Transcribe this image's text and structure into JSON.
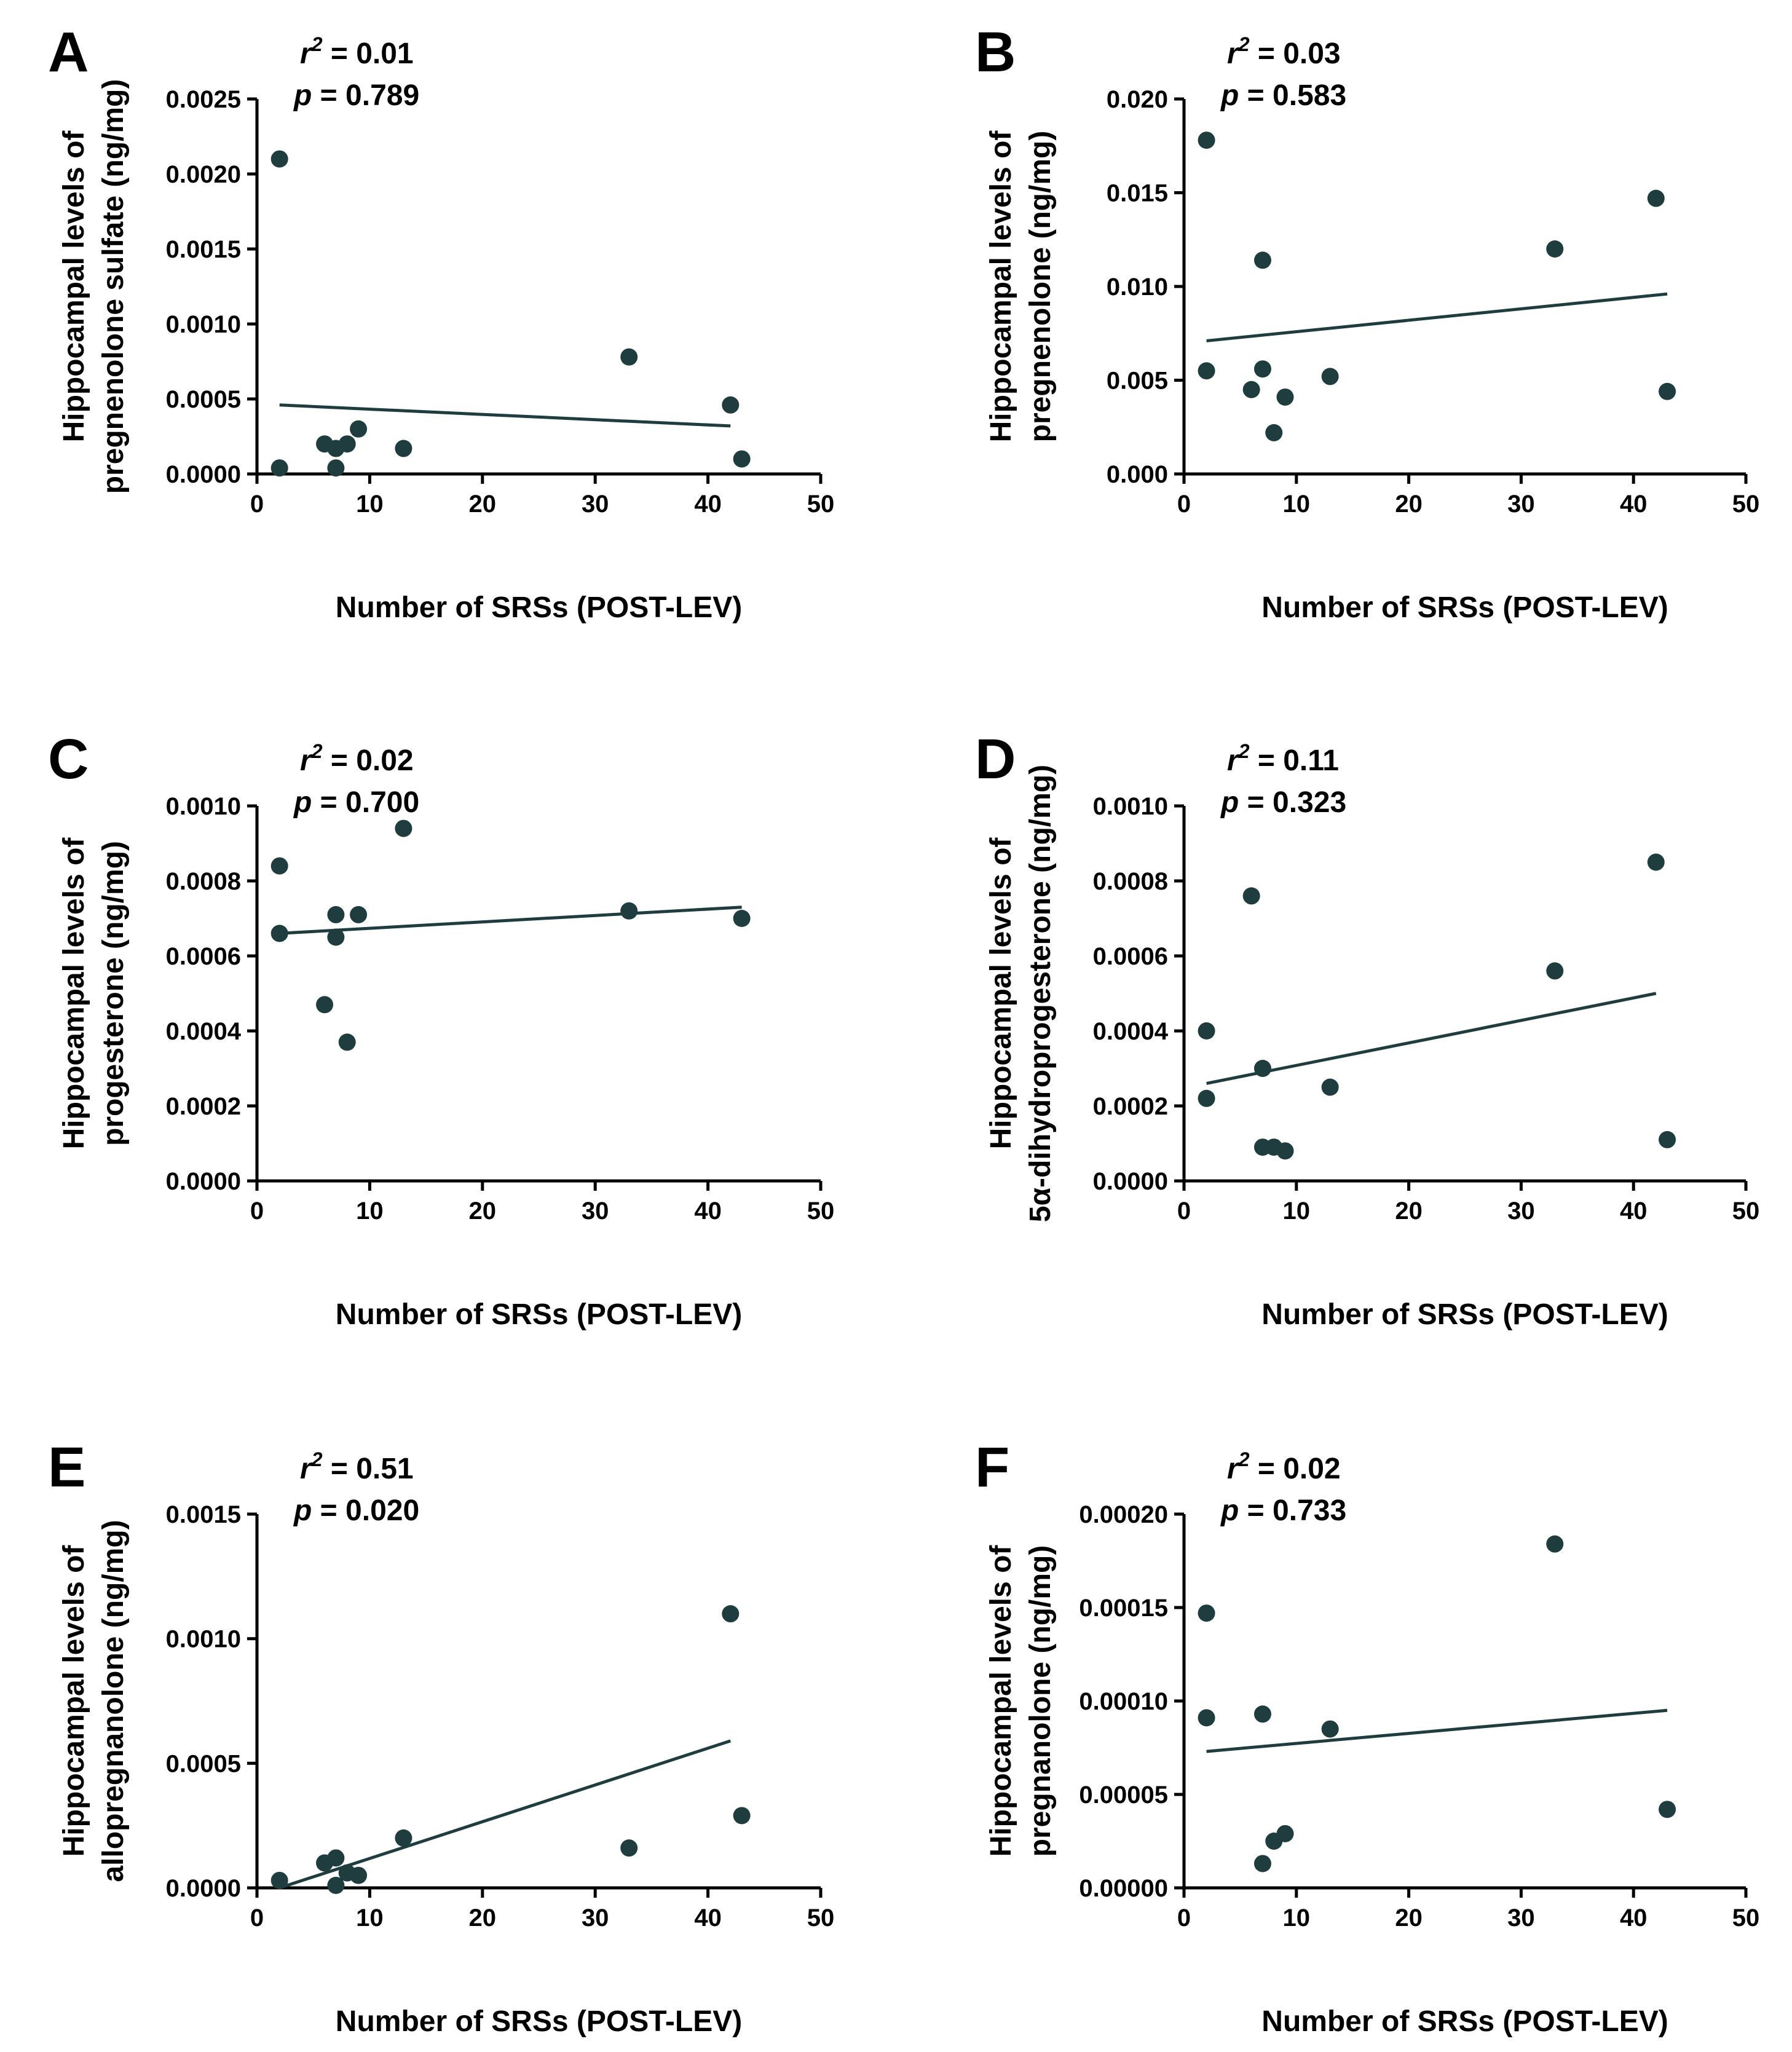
{
  "figure": {
    "colors": {
      "marker": "#1f3c3e",
      "line": "#1f3c3e",
      "axis": "#000000"
    }
  },
  "chart_data": [
    {
      "type": "scatter",
      "panel": "A",
      "title": "",
      "stats": {
        "r2_label": "r",
        "r2_exp": "2",
        "r2_value": " = 0.01",
        "p_label": "p",
        "p_value": " = 0.789"
      },
      "xlabel": "Number of SRSs (POST-LEV)",
      "ylabel": [
        "Hippocampal levels of",
        "pregnenolone sulfate (ng/mg)"
      ],
      "xlim": [
        0,
        50
      ],
      "ylim": [
        0,
        0.0025
      ],
      "xticks": [
        "0",
        "10",
        "20",
        "30",
        "40",
        "50"
      ],
      "xtick_values": [
        0,
        10,
        20,
        30,
        40,
        50
      ],
      "yticks": [
        "0.0000",
        "0.0005",
        "0.0010",
        "0.0015",
        "0.0020",
        "0.0025"
      ],
      "ytick_values": [
        0,
        0.0005,
        0.001,
        0.0015,
        0.002,
        0.0025
      ],
      "x": [
        2,
        2,
        6,
        7,
        7,
        8,
        9,
        13,
        33,
        42,
        43
      ],
      "y": [
        0.0021,
        4e-05,
        0.0002,
        0.00017,
        4e-05,
        0.0002,
        0.0003,
        0.00017,
        0.00078,
        0.00046,
        0.0001
      ],
      "fit": {
        "x": [
          2,
          42
        ],
        "y": [
          0.00046,
          0.00032
        ]
      }
    },
    {
      "type": "scatter",
      "panel": "B",
      "title": "",
      "stats": {
        "r2_label": "r",
        "r2_exp": "2",
        "r2_value": " = 0.03",
        "p_label": "p",
        "p_value": " = 0.583"
      },
      "xlabel": "Number of SRSs (POST-LEV)",
      "ylabel": [
        "Hippocampal levels of",
        "pregnenolone (ng/mg)"
      ],
      "xlim": [
        0,
        50
      ],
      "ylim": [
        0,
        0.02
      ],
      "xticks": [
        "0",
        "10",
        "20",
        "30",
        "40",
        "50"
      ],
      "xtick_values": [
        0,
        10,
        20,
        30,
        40,
        50
      ],
      "yticks": [
        "0.000",
        "0.005",
        "0.010",
        "0.015",
        "0.020"
      ],
      "ytick_values": [
        0,
        0.005,
        0.01,
        0.015,
        0.02
      ],
      "x": [
        2,
        2,
        6,
        7,
        7,
        8,
        9,
        13,
        33,
        42,
        43
      ],
      "y": [
        0.0178,
        0.0055,
        0.0045,
        0.0114,
        0.0056,
        0.0022,
        0.0041,
        0.0052,
        0.012,
        0.0147,
        0.0044
      ],
      "fit": {
        "x": [
          2,
          43
        ],
        "y": [
          0.0071,
          0.0096
        ]
      }
    },
    {
      "type": "scatter",
      "panel": "C",
      "title": "",
      "stats": {
        "r2_label": "r",
        "r2_exp": "2",
        "r2_value": " = 0.02",
        "p_label": "p",
        "p_value": " = 0.700"
      },
      "xlabel": "Number of SRSs (POST-LEV)",
      "ylabel": [
        "Hippocampal levels of",
        "progesterone (ng/mg)"
      ],
      "xlim": [
        0,
        50
      ],
      "ylim": [
        0,
        0.001
      ],
      "xticks": [
        "0",
        "10",
        "20",
        "30",
        "40",
        "50"
      ],
      "xtick_values": [
        0,
        10,
        20,
        30,
        40,
        50
      ],
      "yticks": [
        "0.0000",
        "0.0002",
        "0.0004",
        "0.0006",
        "0.0008",
        "0.0010"
      ],
      "ytick_values": [
        0,
        0.0002,
        0.0004,
        0.0006,
        0.0008,
        0.001
      ],
      "x": [
        2,
        2,
        6,
        7,
        7,
        8,
        9,
        13,
        33,
        43
      ],
      "y": [
        0.00084,
        0.00066,
        0.00047,
        0.00071,
        0.00065,
        0.00037,
        0.00071,
        0.00094,
        0.00072,
        0.0007
      ],
      "fit": {
        "x": [
          2,
          43
        ],
        "y": [
          0.00066,
          0.00073
        ]
      }
    },
    {
      "type": "scatter",
      "panel": "D",
      "title": "",
      "stats": {
        "r2_label": "r",
        "r2_exp": "2",
        "r2_value": " = 0.11",
        "p_label": "p",
        "p_value": " = 0.323"
      },
      "xlabel": "Number of SRSs (POST-LEV)",
      "ylabel": [
        "Hippocampal levels of",
        "5α-dihydroprogesterone (ng/mg)"
      ],
      "xlim": [
        0,
        50
      ],
      "ylim": [
        0,
        0.001
      ],
      "xticks": [
        "0",
        "10",
        "20",
        "30",
        "40",
        "50"
      ],
      "xtick_values": [
        0,
        10,
        20,
        30,
        40,
        50
      ],
      "yticks": [
        "0.0000",
        "0.0002",
        "0.0004",
        "0.0006",
        "0.0008",
        "0.0010"
      ],
      "ytick_values": [
        0,
        0.0002,
        0.0004,
        0.0006,
        0.0008,
        0.001
      ],
      "x": [
        2,
        2,
        6,
        7,
        7,
        8,
        9,
        13,
        33,
        42,
        43
      ],
      "y": [
        0.0004,
        0.00022,
        0.00076,
        0.0003,
        9e-05,
        9e-05,
        8e-05,
        0.00025,
        0.00056,
        0.00085,
        0.00011
      ],
      "fit": {
        "x": [
          2,
          42
        ],
        "y": [
          0.00026,
          0.0005
        ]
      }
    },
    {
      "type": "scatter",
      "panel": "E",
      "title": "",
      "stats": {
        "r2_label": "r",
        "r2_exp": "2",
        "r2_value": " = 0.51",
        "p_label": "p",
        "p_value": " = 0.020"
      },
      "xlabel": "Number of SRSs (POST-LEV)",
      "ylabel": [
        "Hippocampal levels of",
        "allopregnanolone (ng/mg)"
      ],
      "xlim": [
        0,
        50
      ],
      "ylim": [
        0,
        0.0015
      ],
      "xticks": [
        "0",
        "10",
        "20",
        "30",
        "40",
        "50"
      ],
      "xtick_values": [
        0,
        10,
        20,
        30,
        40,
        50
      ],
      "yticks": [
        "0.0000",
        "0.0005",
        "0.0010",
        "0.0015"
      ],
      "ytick_values": [
        0,
        0.0005,
        0.001,
        0.0015
      ],
      "x": [
        2,
        6,
        7,
        7,
        8,
        9,
        13,
        33,
        42,
        43
      ],
      "y": [
        3e-05,
        0.0001,
        0.00012,
        1e-05,
        6e-05,
        5e-05,
        0.0002,
        0.00016,
        0.0011,
        0.00029
      ],
      "fit": {
        "x": [
          2,
          42
        ],
        "y": [
          0.0,
          0.00059
        ]
      }
    },
    {
      "type": "scatter",
      "panel": "F",
      "title": "",
      "stats": {
        "r2_label": "r",
        "r2_exp": "2",
        "r2_value": " = 0.02",
        "p_label": "p",
        "p_value": " = 0.733"
      },
      "xlabel": "Number of SRSs (POST-LEV)",
      "ylabel": [
        "Hippocampal levels of",
        "pregnanolone (ng/mg)"
      ],
      "xlim": [
        0,
        50
      ],
      "ylim": [
        0,
        0.0002
      ],
      "xticks": [
        "0",
        "10",
        "20",
        "30",
        "40",
        "50"
      ],
      "xtick_values": [
        0,
        10,
        20,
        30,
        40,
        50
      ],
      "yticks": [
        "0.00000",
        "0.00005",
        "0.00010",
        "0.00015",
        "0.00020"
      ],
      "ytick_values": [
        0,
        5e-05,
        0.0001,
        0.00015,
        0.0002
      ],
      "x": [
        2,
        2,
        7,
        7,
        8,
        9,
        13,
        33,
        43
      ],
      "y": [
        0.000147,
        9.1e-05,
        9.3e-05,
        1.3e-05,
        2.5e-05,
        2.9e-05,
        8.5e-05,
        0.000184,
        4.2e-05
      ],
      "fit": {
        "x": [
          2,
          43
        ],
        "y": [
          7.3e-05,
          9.5e-05
        ]
      }
    }
  ]
}
